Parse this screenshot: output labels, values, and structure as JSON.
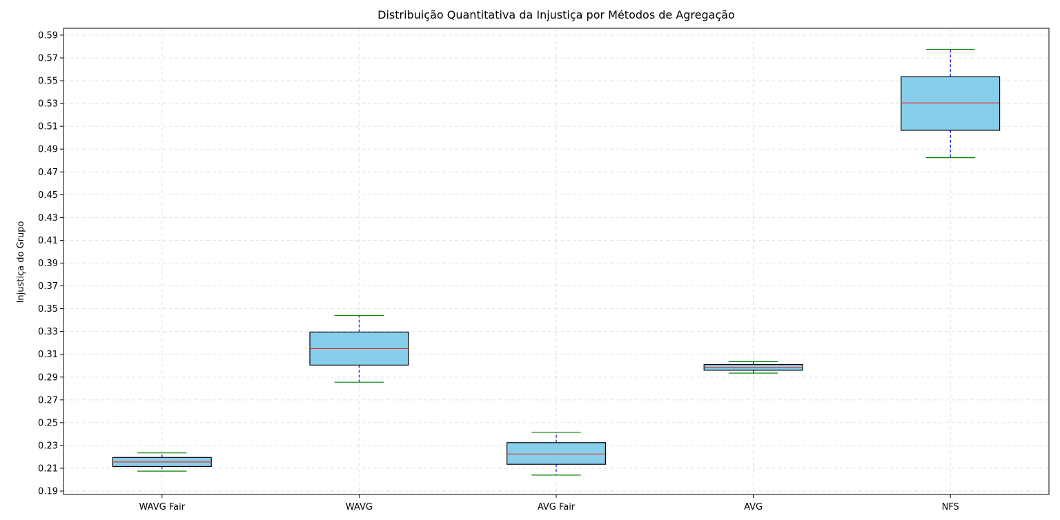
{
  "chart_data": {
    "type": "boxplot",
    "title": "Distribuição Quantitativa da Injustiça por Métodos de Agregação",
    "xlabel": "",
    "ylabel": "Injustiça do Grupo",
    "ylim": [
      0.187,
      0.596
    ],
    "yticks": [
      "0.19",
      "0.21",
      "0.23",
      "0.25",
      "0.27",
      "0.29",
      "0.31",
      "0.33",
      "0.35",
      "0.37",
      "0.39",
      "0.41",
      "0.43",
      "0.45",
      "0.47",
      "0.49",
      "0.51",
      "0.53",
      "0.55",
      "0.57",
      "0.59"
    ],
    "grid": true,
    "categories": [
      "WAVG Fair",
      "WAVG",
      "AVG Fair",
      "AVG",
      "NFS"
    ],
    "boxes": [
      {
        "whisker_low": 0.2075,
        "q1": 0.2115,
        "median": 0.2155,
        "q3": 0.2195,
        "whisker_high": 0.2235
      },
      {
        "whisker_low": 0.2855,
        "q1": 0.3005,
        "median": 0.315,
        "q3": 0.3295,
        "whisker_high": 0.344
      },
      {
        "whisker_low": 0.204,
        "q1": 0.2135,
        "median": 0.2225,
        "q3": 0.2325,
        "whisker_high": 0.2415
      },
      {
        "whisker_low": 0.2935,
        "q1": 0.296,
        "median": 0.2985,
        "q3": 0.301,
        "whisker_high": 0.3035
      },
      {
        "whisker_low": 0.4825,
        "q1": 0.5065,
        "median": 0.5305,
        "q3": 0.5535,
        "whisker_high": 0.5775
      }
    ],
    "colors": {
      "box_fill": "#87CEEB",
      "box_edge": "#000000",
      "median": "#e8322b",
      "whisker": "#0000ff",
      "cap": "#008000",
      "grid": "#d9d9d9"
    }
  }
}
